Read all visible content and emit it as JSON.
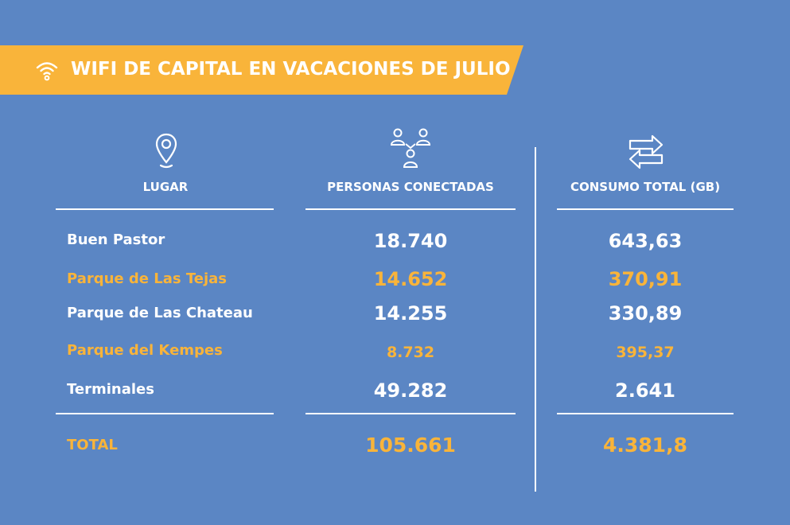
{
  "header": {
    "title": "WIFI DE CAPITAL EN VACACIONES DE JULIO",
    "icon": "wifi-icon"
  },
  "columns": {
    "lugar": {
      "label": "LUGAR",
      "icon": "location-pin-icon"
    },
    "personas": {
      "label": "PERSONAS CONECTADAS",
      "icon": "people-network-icon"
    },
    "consumo": {
      "label": "CONSUMO TOTAL (GB)",
      "icon": "transfer-arrows-icon"
    }
  },
  "rows": [
    {
      "place": "Buen Pastor",
      "people": "18.740",
      "consumption": "643,63",
      "highlight": false
    },
    {
      "place": "Parque de Las Tejas",
      "people": "14.652",
      "consumption": "370,91",
      "highlight": true
    },
    {
      "place": "Parque de Las Chateau",
      "people": "14.255",
      "consumption": "330,89",
      "highlight": false
    },
    {
      "place": "Parque del Kempes",
      "people": "8.732",
      "consumption": "395,37",
      "highlight": true
    },
    {
      "place": "Terminales",
      "people": "49.282",
      "consumption": "2.641",
      "highlight": false
    }
  ],
  "total": {
    "label": "TOTAL",
    "people": "105.661",
    "consumption": "4.381,8"
  },
  "colors": {
    "background": "#5b86c4",
    "accent": "#f9b43a",
    "text": "#ffffff"
  }
}
